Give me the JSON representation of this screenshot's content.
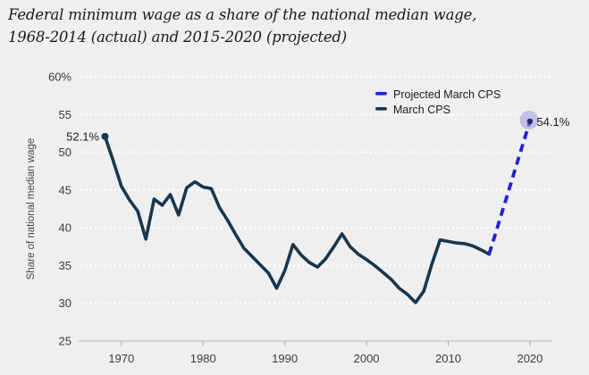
{
  "title": {
    "line1": "Federal minimum wage as a share of the national median wage,",
    "line2": "1968-2014 (actual) and 2015-2020 (projected)"
  },
  "colors": {
    "background": "#efefef",
    "grid_dots": "#ffffff",
    "axis_line": "#c4c4c4",
    "tick": "#a8a8a8",
    "axis_text": "#3c3c3c",
    "label_text": "#1c1c1c",
    "actual_line": "#17374e",
    "projected_line": "#2323cc",
    "end_halo": "#9c98de",
    "end_dot": "#232a63"
  },
  "chart_data": {
    "type": "line",
    "title": "Federal minimum wage as a share of the national median wage, 1968-2014 (actual) and 2015-2020 (projected)",
    "xlabel": "",
    "ylabel": "Share of national median wage",
    "ylim": [
      25,
      60
    ],
    "xlim": [
      1965,
      2023
    ],
    "grid": "horizontal dotted white lines at every 5 units",
    "y_ticks": [
      {
        "value": 60,
        "label": "60%"
      },
      {
        "value": 55,
        "label": "55"
      },
      {
        "value": 50,
        "label": "50"
      },
      {
        "value": 45,
        "label": "45"
      },
      {
        "value": 40,
        "label": "40"
      },
      {
        "value": 35,
        "label": "35"
      },
      {
        "value": 30,
        "label": "30"
      },
      {
        "value": 25,
        "label": "25"
      }
    ],
    "x_ticks": [
      {
        "value": 1970,
        "label": "1970"
      },
      {
        "value": 1980,
        "label": "1980"
      },
      {
        "value": 1990,
        "label": "1990"
      },
      {
        "value": 2000,
        "label": "2000"
      },
      {
        "value": 2010,
        "label": "2010"
      },
      {
        "value": 2020,
        "label": "2020"
      }
    ],
    "legend": {
      "position": "top-right",
      "entries": [
        {
          "label": "Projected March CPS",
          "style": "dashed",
          "color": "#2323cc"
        },
        {
          "label": "March CPS",
          "style": "solid",
          "color": "#17374e"
        }
      ]
    },
    "series": [
      {
        "name": "March CPS",
        "style": "solid",
        "color": "#17374e",
        "years": [
          1968,
          1969,
          1970,
          1971,
          1972,
          1973,
          1974,
          1975,
          1976,
          1977,
          1978,
          1979,
          1980,
          1981,
          1982,
          1983,
          1984,
          1985,
          1986,
          1987,
          1988,
          1989,
          1990,
          1991,
          1992,
          1993,
          1994,
          1995,
          1996,
          1997,
          1998,
          1999,
          2000,
          2001,
          2002,
          2003,
          2004,
          2005,
          2006,
          2007,
          2008,
          2009,
          2010,
          2011,
          2012,
          2013,
          2014,
          2015
        ],
        "values": [
          52.1,
          48.9,
          45.5,
          43.7,
          42.2,
          38.5,
          43.8,
          43.0,
          44.4,
          41.7,
          45.3,
          46.1,
          45.4,
          45.2,
          42.7,
          41.0,
          39.1,
          37.3,
          36.2,
          35.1,
          34.0,
          32.0,
          34.3,
          37.8,
          36.4,
          35.4,
          34.8,
          35.9,
          37.5,
          39.2,
          37.5,
          36.5,
          35.8,
          35.0,
          34.1,
          33.2,
          32.0,
          31.2,
          30.1,
          31.6,
          35.2,
          38.4,
          38.2,
          38.0,
          37.9,
          37.6,
          37.1,
          36.5
        ]
      },
      {
        "name": "Projected March CPS",
        "style": "dashed",
        "color": "#2323cc",
        "years": [
          2015,
          2016,
          2017,
          2018,
          2019,
          2020
        ],
        "values": [
          36.5,
          40.0,
          43.5,
          47.1,
          50.6,
          54.1
        ]
      }
    ],
    "point_labels": [
      {
        "text": "52.1%",
        "year": 1968,
        "value": 52.1,
        "side": "left",
        "dot": true,
        "halo": false
      },
      {
        "text": "54.1%",
        "year": 2020,
        "value": 54.1,
        "side": "right",
        "dot": true,
        "halo": true
      }
    ]
  }
}
